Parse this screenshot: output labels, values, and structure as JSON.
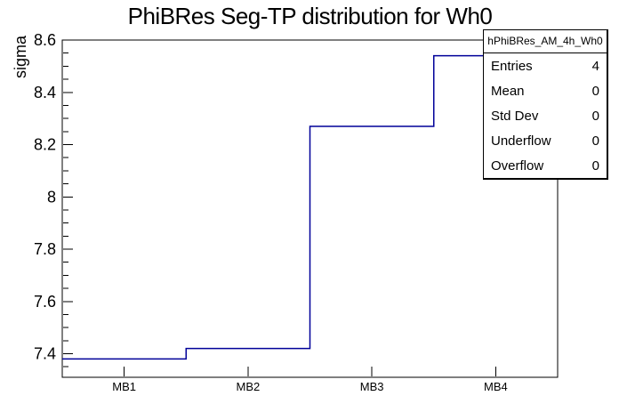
{
  "title": "PhiBRes Seg-TP distribution for Wh0",
  "y_axis": {
    "title": "sigma"
  },
  "x_axis": {
    "labels": [
      "MB1",
      "MB2",
      "MB3",
      "MB4"
    ]
  },
  "stats": {
    "header": "hPhiBRes_AM_4h_Wh0",
    "rows": [
      {
        "label": "Entries",
        "value": "4"
      },
      {
        "label": "Mean",
        "value": "0"
      },
      {
        "label": "Std Dev",
        "value": "0"
      },
      {
        "label": "Underflow",
        "value": "0"
      },
      {
        "label": "Overflow",
        "value": "0"
      }
    ]
  },
  "chart_data": {
    "type": "line",
    "subtype": "step-histogram",
    "title": "PhiBRes Seg-TP distribution for Wh0",
    "xlabel": "",
    "ylabel": "sigma",
    "categories": [
      "MB1",
      "MB2",
      "MB3",
      "MB4"
    ],
    "values": [
      7.38,
      7.42,
      8.27,
      8.54
    ],
    "ylim": [
      7.31,
      8.6
    ],
    "y_major_ticks": [
      7.4,
      7.6,
      7.8,
      8.0,
      8.2,
      8.4,
      8.6
    ],
    "y_tick_labels": [
      "7.4",
      "7.6",
      "7.8",
      "8",
      "8.2",
      "8.4",
      "8.6"
    ],
    "y_minor_step": 0.05,
    "grid": false,
    "line_color": "#000099",
    "frame_color": "#000000",
    "background_color": "#ffffff",
    "legend_position": "none (stats box top-right)"
  }
}
